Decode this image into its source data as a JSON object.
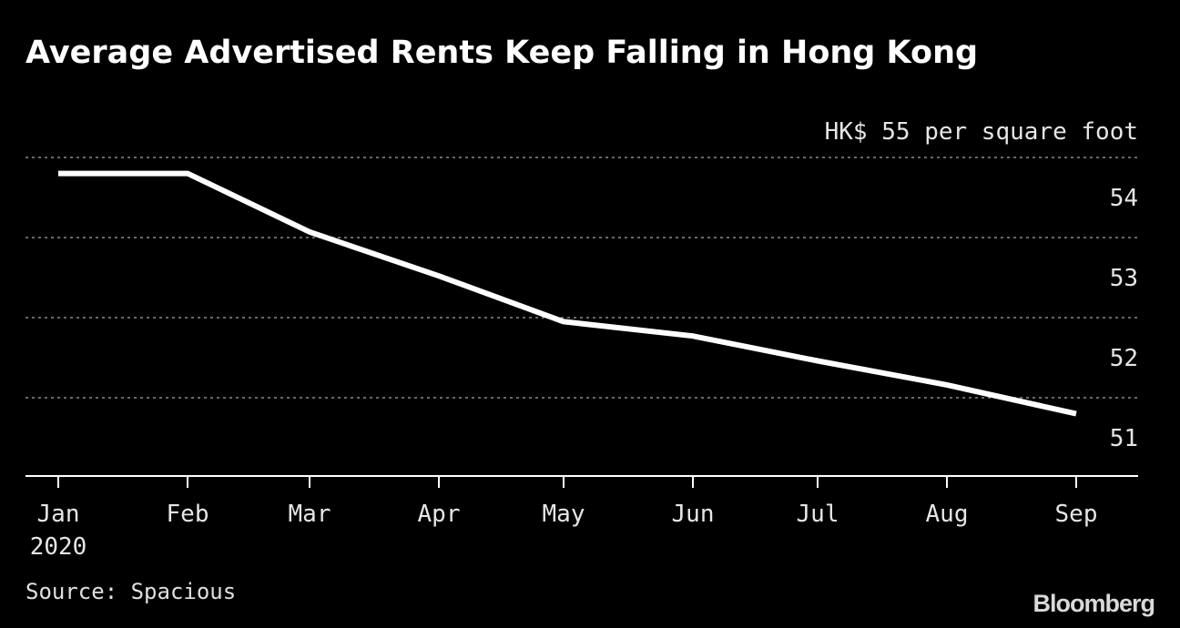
{
  "chart_data": {
    "type": "line",
    "title": "Average Advertised Rents Keep Falling in Hong Kong",
    "unit_label": "HK$ 55 per square foot",
    "categories": [
      "Jan",
      "Feb",
      "Mar",
      "Apr",
      "May",
      "Jun",
      "Jul",
      "Aug",
      "Sep"
    ],
    "year_label": "2020",
    "series": [
      {
        "values": [
          54.8,
          54.8,
          54.07,
          53.52,
          52.95,
          52.77,
          52.46,
          52.16,
          51.8
        ]
      }
    ],
    "yticks": [
      {
        "value": 55,
        "label": ""
      },
      {
        "value": 54,
        "label": "54"
      },
      {
        "value": 53,
        "label": "53"
      },
      {
        "value": 52,
        "label": "52"
      },
      {
        "value": 51,
        "label": "51"
      }
    ],
    "ylim": [
      51,
      55
    ],
    "grid": true,
    "line_color": "#ffffff"
  },
  "source": "Source: Spacious",
  "brand": "Bloomberg"
}
